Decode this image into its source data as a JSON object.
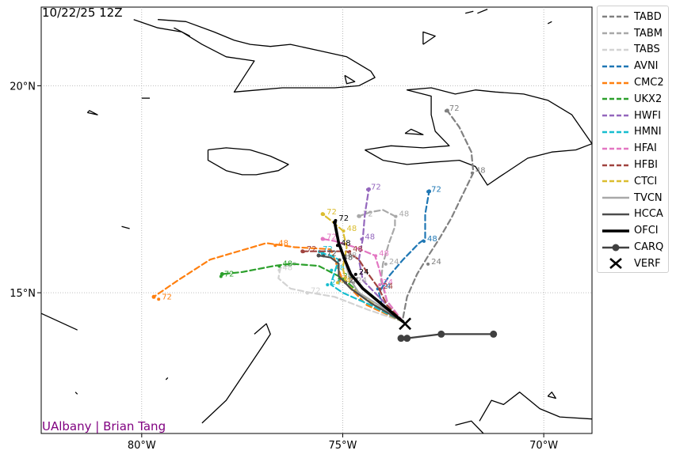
{
  "header": {
    "init_label": "10/22/25 12Z"
  },
  "credit": {
    "text": "UAlbany | Brian Tang",
    "color": "#800080"
  },
  "axes": {
    "lon_range": [
      -82.5,
      -68.8
    ],
    "lat_range": [
      11.6,
      21.9
    ],
    "lon_ticks": [
      -80,
      -75,
      -70
    ],
    "lon_tick_labels": [
      "80°W",
      "75°W",
      "70°W"
    ],
    "lat_ticks": [
      15,
      20
    ],
    "lat_tick_labels": [
      "15°N",
      "20°N"
    ],
    "grid": true
  },
  "legend": {
    "items": [
      {
        "label": "TABD",
        "color": "#808080",
        "style": "dashed"
      },
      {
        "label": "TABM",
        "color": "#a8a8a8",
        "style": "dashed"
      },
      {
        "label": "TABS",
        "color": "#d3d3d3",
        "style": "dashed"
      },
      {
        "label": "AVNI",
        "color": "#1f77b4",
        "style": "dashed"
      },
      {
        "label": "CMC2",
        "color": "#ff7f0e",
        "style": "dashed"
      },
      {
        "label": "UKX2",
        "color": "#2ca02c",
        "style": "dashed"
      },
      {
        "label": "HWFI",
        "color": "#9467bd",
        "style": "dashed"
      },
      {
        "label": "HMNI",
        "color": "#17becf",
        "style": "dashed"
      },
      {
        "label": "HFAI",
        "color": "#e377c2",
        "style": "dashed"
      },
      {
        "label": "HFBI",
        "color": "#a0433f",
        "style": "dashed"
      },
      {
        "label": "CTCI",
        "color": "#dbbd2f",
        "style": "dashed"
      },
      {
        "label": "TVCN",
        "color": "#a8a8a8",
        "style": "solid"
      },
      {
        "label": "HCCA",
        "color": "#4d4d4d",
        "style": "solid"
      },
      {
        "label": "OFCI",
        "color": "#000000",
        "style": "solid-thick"
      },
      {
        "label": "CARQ",
        "color": "#404040",
        "style": "solid-dot"
      },
      {
        "label": "VERF",
        "color": "#000000",
        "style": "cross"
      }
    ]
  },
  "tracks": [
    {
      "name": "TABD",
      "color": "#808080",
      "dash": "7,4",
      "width": 2.2,
      "points": [
        [
          -73.5,
          14.4
        ],
        [
          -73.4,
          14.9
        ],
        [
          -73.15,
          15.45
        ],
        [
          -72.9,
          15.85
        ],
        [
          -72.6,
          16.3
        ],
        [
          -72.3,
          16.8
        ],
        [
          -71.75,
          17.9
        ],
        [
          -71.8,
          18.4
        ],
        [
          -72.1,
          19.0
        ],
        [
          -72.4,
          19.4
        ]
      ],
      "labels": [
        {
          "text": "24",
          "lon": -72.8,
          "lat": 15.75
        },
        {
          "text": "48",
          "lon": -71.7,
          "lat": 17.95
        },
        {
          "text": "72",
          "lon": -72.35,
          "lat": 19.45
        }
      ]
    },
    {
      "name": "TABM",
      "color": "#a8a8a8",
      "dash": "7,4",
      "width": 2.2,
      "points": [
        [
          -73.5,
          14.3
        ],
        [
          -73.9,
          14.8
        ],
        [
          -74.05,
          15.3
        ],
        [
          -74.0,
          15.7
        ],
        [
          -73.85,
          16.2
        ],
        [
          -73.7,
          16.6
        ],
        [
          -73.7,
          16.85
        ],
        [
          -74.0,
          17.0
        ],
        [
          -74.3,
          16.95
        ],
        [
          -74.6,
          16.85
        ]
      ],
      "labels": [
        {
          "text": "24",
          "lon": -73.85,
          "lat": 15.75
        },
        {
          "text": "48",
          "lon": -73.6,
          "lat": 16.9
        },
        {
          "text": "72",
          "lon": -74.5,
          "lat": 16.9
        }
      ]
    },
    {
      "name": "TABS",
      "color": "#d3d3d3",
      "dash": "7,4",
      "width": 2.2,
      "points": [
        [
          -73.5,
          14.3
        ],
        [
          -74.4,
          14.6
        ],
        [
          -75.2,
          14.9
        ],
        [
          -75.8,
          15.0
        ],
        [
          -76.3,
          15.1
        ],
        [
          -76.6,
          15.35
        ],
        [
          -76.55,
          15.6
        ],
        [
          -76.2,
          15.7
        ]
      ],
      "labels": [
        {
          "text": "72",
          "lon": -75.8,
          "lat": 15.05
        },
        {
          "text": "48",
          "lon": -76.5,
          "lat": 15.6
        }
      ]
    },
    {
      "name": "AVNI",
      "color": "#1f77b4",
      "dash": "7,4",
      "width": 2.2,
      "points": [
        [
          -73.5,
          14.3
        ],
        [
          -74.0,
          14.6
        ],
        [
          -74.1,
          15.0
        ],
        [
          -73.85,
          15.4
        ],
        [
          -73.5,
          15.8
        ],
        [
          -73.1,
          16.2
        ],
        [
          -72.95,
          16.3
        ],
        [
          -72.95,
          16.9
        ],
        [
          -72.85,
          17.45
        ]
      ],
      "labels": [
        {
          "text": "24",
          "lon": -74.05,
          "lat": 15.15
        },
        {
          "text": "48",
          "lon": -72.9,
          "lat": 16.3
        },
        {
          "text": "72",
          "lon": -72.8,
          "lat": 17.5
        }
      ]
    },
    {
      "name": "CMC2",
      "color": "#ff7f0e",
      "dash": "7,4",
      "width": 2.2,
      "points": [
        [
          -73.5,
          14.3
        ],
        [
          -74.4,
          14.7
        ],
        [
          -75.0,
          15.3
        ],
        [
          -75.2,
          15.8
        ],
        [
          -75.3,
          16.05
        ],
        [
          -76.2,
          16.1
        ],
        [
          -76.9,
          16.2
        ],
        [
          -78.3,
          15.8
        ],
        [
          -79.1,
          15.3
        ],
        [
          -79.7,
          14.9
        ]
      ],
      "labels": [
        {
          "text": "24",
          "lon": -75.0,
          "lat": 15.35
        },
        {
          "text": "48",
          "lon": -76.6,
          "lat": 16.2
        },
        {
          "text": "72",
          "lon": -79.5,
          "lat": 14.9
        }
      ]
    },
    {
      "name": "UKX2",
      "color": "#2ca02c",
      "dash": "7,4",
      "width": 2.2,
      "points": [
        [
          -73.5,
          14.3
        ],
        [
          -74.3,
          14.75
        ],
        [
          -75.0,
          15.35
        ],
        [
          -75.6,
          15.65
        ],
        [
          -76.3,
          15.7
        ],
        [
          -76.7,
          15.65
        ],
        [
          -77.5,
          15.5
        ],
        [
          -78.0,
          15.45
        ]
      ],
      "labels": [
        {
          "text": "24",
          "lon": -75.0,
          "lat": 15.4
        },
        {
          "text": "48",
          "lon": -76.5,
          "lat": 15.7
        },
        {
          "text": "72",
          "lon": -77.95,
          "lat": 15.45
        }
      ]
    },
    {
      "name": "HWFI",
      "color": "#9467bd",
      "dash": "7,4",
      "width": 2.2,
      "points": [
        [
          -73.5,
          14.3
        ],
        [
          -74.0,
          14.8
        ],
        [
          -74.5,
          15.3
        ],
        [
          -74.6,
          15.8
        ],
        [
          -74.5,
          16.3
        ],
        [
          -74.45,
          16.9
        ],
        [
          -74.35,
          17.5
        ]
      ],
      "labels": [
        {
          "text": "48",
          "lon": -74.45,
          "lat": 16.35
        },
        {
          "text": "72",
          "lon": -74.3,
          "lat": 17.55
        }
      ]
    },
    {
      "name": "HMNI",
      "color": "#17becf",
      "dash": "7,4",
      "width": 2.2,
      "points": [
        [
          -73.5,
          14.3
        ],
        [
          -74.3,
          14.7
        ],
        [
          -75.0,
          15.0
        ],
        [
          -75.3,
          15.2
        ],
        [
          -75.2,
          15.5
        ],
        [
          -75.1,
          15.8
        ],
        [
          -75.3,
          15.9
        ],
        [
          -75.5,
          15.95
        ]
      ],
      "labels": [
        {
          "text": "24",
          "lon": -75.3,
          "lat": 15.25
        },
        {
          "text": "48",
          "lon": -75.2,
          "lat": 15.6
        },
        {
          "text": "72",
          "lon": -75.5,
          "lat": 16.05
        }
      ]
    },
    {
      "name": "HFAI",
      "color": "#e377c2",
      "dash": "7,4",
      "width": 2.2,
      "points": [
        [
          -73.5,
          14.3
        ],
        [
          -73.9,
          14.8
        ],
        [
          -74.0,
          15.2
        ],
        [
          -74.1,
          15.6
        ],
        [
          -74.2,
          15.9
        ],
        [
          -74.7,
          16.1
        ],
        [
          -75.2,
          16.25
        ],
        [
          -75.5,
          16.3
        ]
      ],
      "labels": [
        {
          "text": "24",
          "lon": -74.0,
          "lat": 15.25
        },
        {
          "text": "48",
          "lon": -74.1,
          "lat": 15.95
        },
        {
          "text": "72",
          "lon": -75.4,
          "lat": 16.35
        }
      ]
    },
    {
      "name": "HFBI",
      "color": "#a0433f",
      "dash": "7,4",
      "width": 2.2,
      "points": [
        [
          -73.5,
          14.3
        ],
        [
          -73.9,
          14.7
        ],
        [
          -74.1,
          15.1
        ],
        [
          -74.4,
          15.5
        ],
        [
          -74.6,
          15.8
        ],
        [
          -74.9,
          16.0
        ],
        [
          -75.4,
          16.0
        ],
        [
          -76.0,
          16.0
        ]
      ],
      "labels": [
        {
          "text": "24",
          "lon": -74.0,
          "lat": 15.15
        },
        {
          "text": "48",
          "lon": -74.75,
          "lat": 16.05
        },
        {
          "text": "72",
          "lon": -75.9,
          "lat": 16.05
        }
      ]
    },
    {
      "name": "CTCI",
      "color": "#dbbd2f",
      "dash": "7,4",
      "width": 2.2,
      "points": [
        [
          -73.5,
          14.3
        ],
        [
          -74.2,
          14.7
        ],
        [
          -74.9,
          15.2
        ],
        [
          -75.0,
          15.6
        ],
        [
          -74.9,
          16.1
        ],
        [
          -75.0,
          16.5
        ],
        [
          -75.3,
          16.75
        ],
        [
          -75.5,
          16.9
        ]
      ],
      "labels": [
        {
          "text": "24",
          "lon": -75.05,
          "lat": 15.3
        },
        {
          "text": "48",
          "lon": -74.9,
          "lat": 16.55
        },
        {
          "text": "72",
          "lon": -75.4,
          "lat": 16.95
        }
      ]
    },
    {
      "name": "TVCN",
      "color": "#a8a8a8",
      "dash": "",
      "width": 2.2,
      "points": [
        [
          -73.5,
          14.3
        ],
        [
          -74.1,
          14.7
        ],
        [
          -74.6,
          15.0
        ],
        [
          -74.8,
          15.3
        ],
        [
          -74.9,
          15.6
        ],
        [
          -74.95,
          15.85
        ]
      ],
      "labels": [
        {
          "text": "24",
          "lon": -74.65,
          "lat": 15.3
        },
        {
          "text": "48",
          "lon": -74.9,
          "lat": 15.9
        }
      ]
    },
    {
      "name": "HCCA",
      "color": "#4d4d4d",
      "dash": "",
      "width": 2.2,
      "points": [
        [
          -73.5,
          14.3
        ],
        [
          -74.3,
          14.75
        ],
        [
          -74.8,
          15.1
        ],
        [
          -75.1,
          15.4
        ],
        [
          -75.1,
          15.7
        ],
        [
          -75.3,
          15.85
        ],
        [
          -75.6,
          15.9
        ]
      ],
      "labels": [
        {
          "text": "24",
          "lon": -74.85,
          "lat": 15.3
        },
        {
          "text": "48",
          "lon": -75.0,
          "lat": 15.85
        },
        {
          "text": "72",
          "lon": -75.4,
          "lat": 15.95
        }
      ]
    },
    {
      "name": "OFCI",
      "color": "#000000",
      "dash": "",
      "width": 3.6,
      "points": [
        [
          -73.5,
          14.3
        ],
        [
          -74.0,
          14.7
        ],
        [
          -74.5,
          15.1
        ],
        [
          -74.8,
          15.45
        ],
        [
          -74.95,
          15.8
        ],
        [
          -75.1,
          16.2
        ],
        [
          -75.2,
          16.7
        ]
      ],
      "labels": [
        {
          "text": "24",
          "lon": -74.6,
          "lat": 15.5
        },
        {
          "text": "48",
          "lon": -75.05,
          "lat": 16.2
        },
        {
          "text": "72",
          "lon": -75.1,
          "lat": 16.8
        }
      ]
    }
  ],
  "carq": {
    "name": "CARQ",
    "color": "#404040",
    "points": [
      [
        -73.55,
        13.9
      ],
      [
        -73.4,
        13.9
      ],
      [
        -72.55,
        14.0
      ],
      [
        -71.25,
        14.0
      ]
    ]
  },
  "verf": {
    "name": "VERF",
    "lon": -73.45,
    "lat": 14.25,
    "color": "#000000"
  },
  "coastlines": [
    [
      [
        -79.6,
        21.6
      ],
      [
        -78.9,
        21.55
      ],
      [
        -78.2,
        21.3
      ],
      [
        -77.7,
        21.1
      ],
      [
        -77.3,
        21.0
      ],
      [
        -76.8,
        20.95
      ],
      [
        -76.3,
        21.0
      ],
      [
        -75.6,
        20.85
      ],
      [
        -74.9,
        20.7
      ],
      [
        -74.3,
        20.35
      ],
      [
        -74.2,
        20.2
      ],
      [
        -74.6,
        20.0
      ],
      [
        -75.2,
        19.95
      ],
      [
        -75.8,
        19.95
      ],
      [
        -76.5,
        19.95
      ],
      [
        -77.1,
        19.9
      ],
      [
        -77.7,
        19.85
      ],
      [
        -77.4,
        20.3
      ],
      [
        -77.2,
        20.6
      ],
      [
        -77.9,
        20.7
      ],
      [
        -78.5,
        21.0
      ],
      [
        -79.0,
        21.3
      ],
      [
        -79.6,
        21.4
      ],
      [
        -80.2,
        21.6
      ]
    ],
    [
      [
        -78.35,
        18.45
      ],
      [
        -77.9,
        18.5
      ],
      [
        -77.3,
        18.45
      ],
      [
        -76.8,
        18.3
      ],
      [
        -76.35,
        18.1
      ],
      [
        -76.6,
        17.95
      ],
      [
        -77.15,
        17.85
      ],
      [
        -77.5,
        17.85
      ],
      [
        -77.9,
        17.95
      ],
      [
        -78.35,
        18.2
      ],
      [
        -78.35,
        18.45
      ]
    ],
    [
      [
        -74.45,
        18.45
      ],
      [
        -73.8,
        18.55
      ],
      [
        -73.0,
        18.5
      ],
      [
        -72.35,
        18.55
      ],
      [
        -72.7,
        18.9
      ],
      [
        -72.8,
        19.3
      ],
      [
        -72.8,
        19.75
      ],
      [
        -73.4,
        19.9
      ],
      [
        -72.8,
        19.95
      ],
      [
        -72.2,
        19.8
      ],
      [
        -71.7,
        19.9
      ],
      [
        -71.2,
        19.85
      ],
      [
        -70.5,
        19.8
      ],
      [
        -69.9,
        19.65
      ],
      [
        -69.3,
        19.3
      ],
      [
        -68.8,
        18.6
      ],
      [
        -69.2,
        18.45
      ],
      [
        -69.8,
        18.4
      ],
      [
        -70.4,
        18.25
      ],
      [
        -71.1,
        17.8
      ],
      [
        -71.4,
        17.6
      ],
      [
        -71.7,
        18.05
      ],
      [
        -72.1,
        18.2
      ],
      [
        -72.8,
        18.15
      ],
      [
        -73.4,
        18.1
      ],
      [
        -74.0,
        18.2
      ],
      [
        -74.45,
        18.45
      ]
    ],
    [
      [
        -73.45,
        18.85
      ],
      [
        -73.0,
        18.82
      ],
      [
        -73.3,
        18.95
      ],
      [
        -73.45,
        18.85
      ]
    ],
    [
      [
        -74.95,
        20.25
      ],
      [
        -74.7,
        20.1
      ],
      [
        -74.9,
        20.05
      ],
      [
        -74.95,
        20.25
      ]
    ],
    [
      [
        -82.5,
        14.5
      ],
      [
        -81.6,
        14.1
      ]
    ],
    [
      [
        -78.5,
        11.85
      ],
      [
        -77.9,
        12.4
      ],
      [
        -77.0,
        13.7
      ],
      [
        -76.8,
        14.0
      ],
      [
        -76.9,
        14.25
      ],
      [
        -77.2,
        14.0
      ]
    ],
    [
      [
        -71.6,
        11.9
      ],
      [
        -71.3,
        12.4
      ],
      [
        -71.0,
        12.3
      ],
      [
        -70.6,
        12.6
      ],
      [
        -70.1,
        12.2
      ],
      [
        -69.6,
        12.0
      ],
      [
        -68.8,
        11.95
      ]
    ],
    [
      [
        -71.5,
        11.6
      ],
      [
        -71.8,
        11.9
      ],
      [
        -72.2,
        11.8
      ]
    ],
    [
      [
        -69.9,
        12.5
      ],
      [
        -69.7,
        12.45
      ],
      [
        -69.8,
        12.6
      ],
      [
        -69.9,
        12.5
      ]
    ],
    [
      [
        -79.4,
        12.9
      ],
      [
        -79.35,
        12.95
      ]
    ],
    [
      [
        -80.5,
        16.6
      ],
      [
        -80.3,
        16.55
      ]
    ],
    [
      [
        -81.35,
        19.35
      ],
      [
        -81.1,
        19.3
      ],
      [
        -81.3,
        19.4
      ],
      [
        -81.35,
        19.35
      ]
    ],
    [
      [
        -80.0,
        19.7
      ],
      [
        -79.8,
        19.7
      ]
    ],
    [
      [
        -73.0,
        21.0
      ],
      [
        -72.7,
        21.2
      ],
      [
        -73.0,
        21.3
      ],
      [
        -73.0,
        21.0
      ]
    ],
    [
      [
        -71.65,
        21.75
      ],
      [
        -71.4,
        21.85
      ]
    ],
    [
      [
        -71.95,
        21.75
      ],
      [
        -71.75,
        21.8
      ]
    ],
    [
      [
        -69.9,
        21.5
      ],
      [
        -69.8,
        21.55
      ]
    ],
    [
      [
        -81.6,
        12.55
      ],
      [
        -81.65,
        12.6
      ]
    ],
    [
      [
        -79.2,
        21.4
      ],
      [
        -78.8,
        21.2
      ]
    ]
  ]
}
